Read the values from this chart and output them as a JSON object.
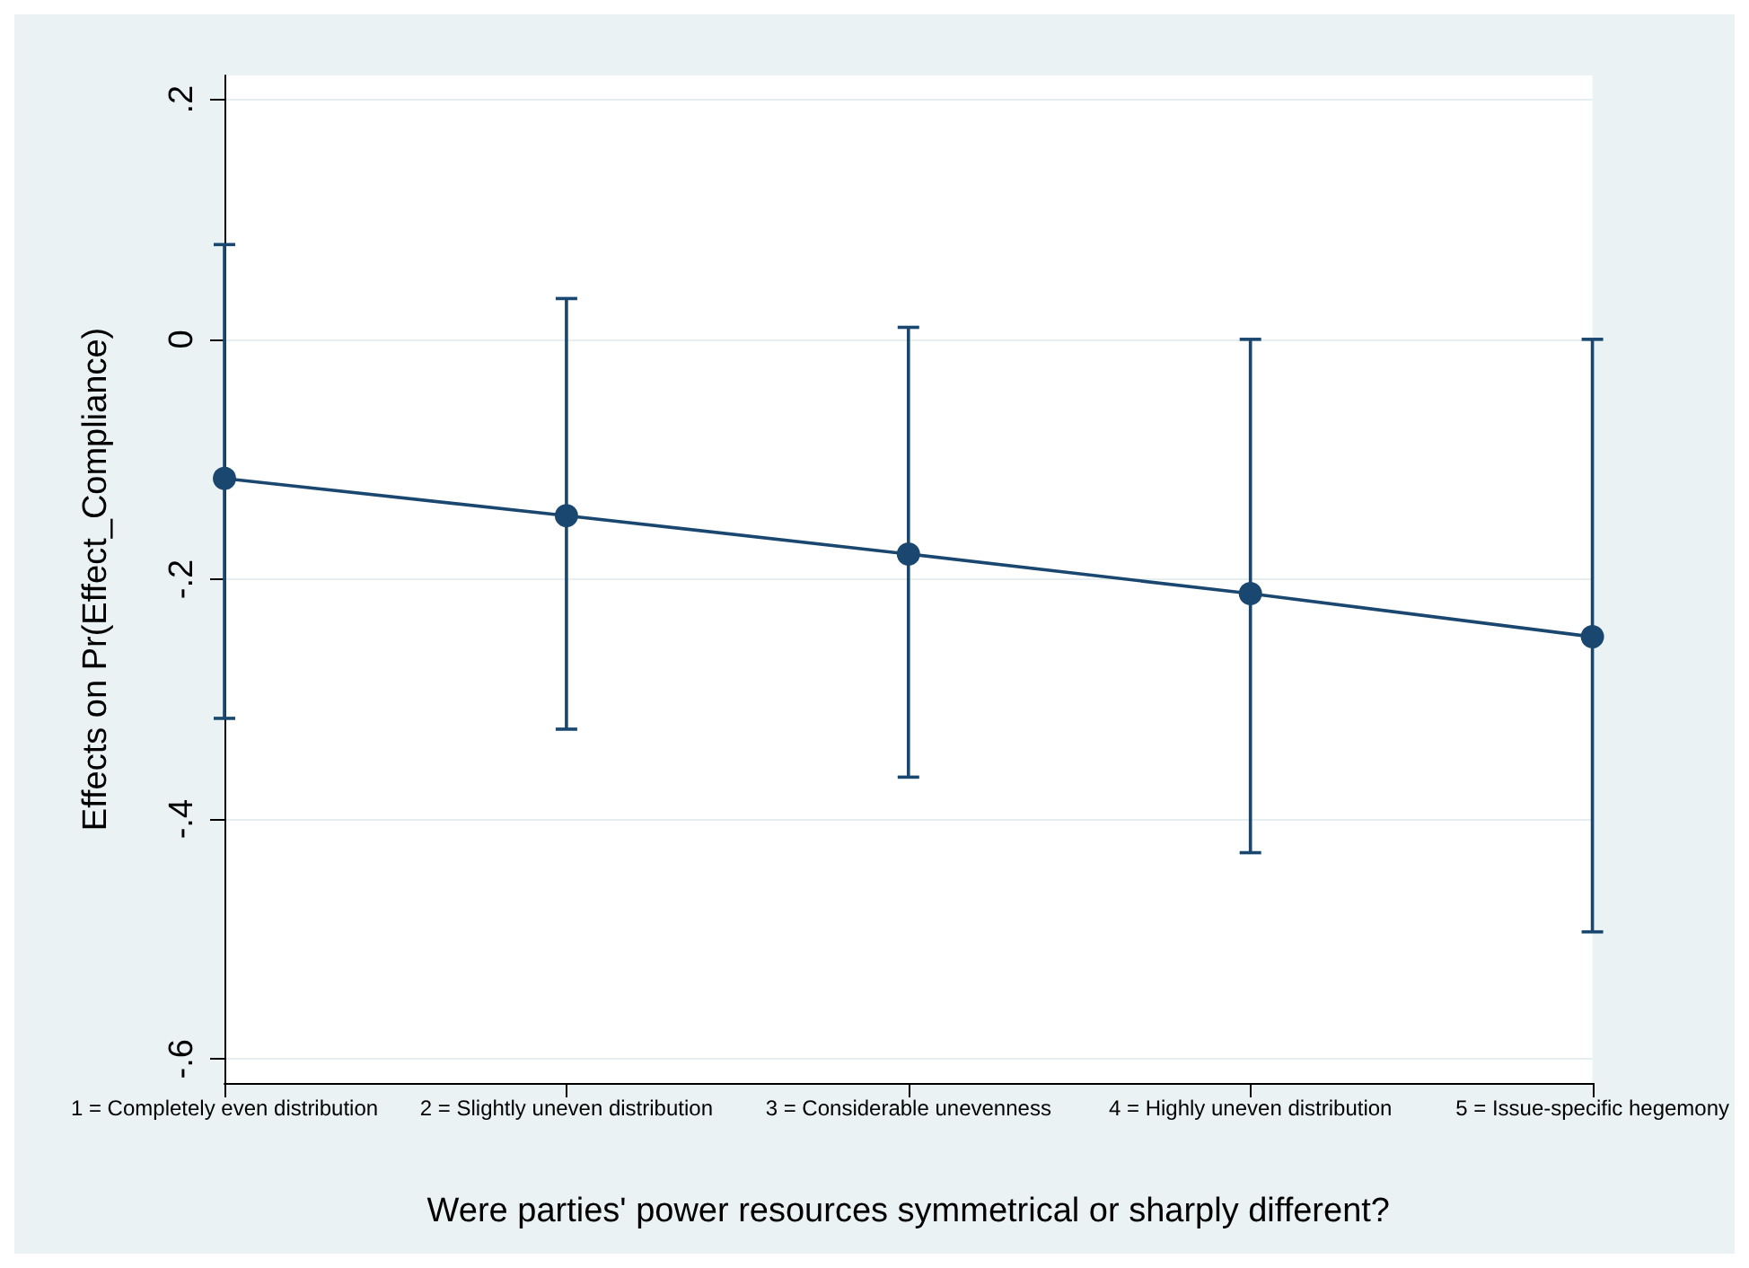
{
  "chart_data": {
    "type": "line",
    "xlabel": "Were parties' power resources symmetrical or sharply different?",
    "ylabel": "Effects on Pr(Effect_Compliance)",
    "categories": [
      "1 = Completely even distribution",
      "2 = Slightly uneven distribution",
      "3 = Considerable unevenness",
      "4 = Highly uneven distribution",
      "5 = Issue-specific hegemony"
    ],
    "series": [
      {
        "color": "#1a476f",
        "values": [
          -0.116,
          -0.147,
          -0.179,
          -0.212,
          -0.248
        ],
        "errors": [
          [
            -0.316,
            0.079
          ],
          [
            -0.325,
            0.034
          ],
          [
            -0.365,
            0.01
          ],
          [
            -0.428,
            0.0
          ],
          [
            -0.494,
            0.0
          ]
        ]
      }
    ],
    "ylim": [
      -0.62,
      0.22
    ],
    "yticks": [
      {
        "value": -0.6,
        "label": "-.6"
      },
      {
        "value": -0.4,
        "label": "-.4"
      },
      {
        "value": -0.2,
        "label": "-.2"
      },
      {
        "value": 0,
        "label": "0"
      },
      {
        "value": 0.2,
        "label": ".2"
      }
    ],
    "grid": "y",
    "marker": "circle",
    "line_style": "solid"
  }
}
